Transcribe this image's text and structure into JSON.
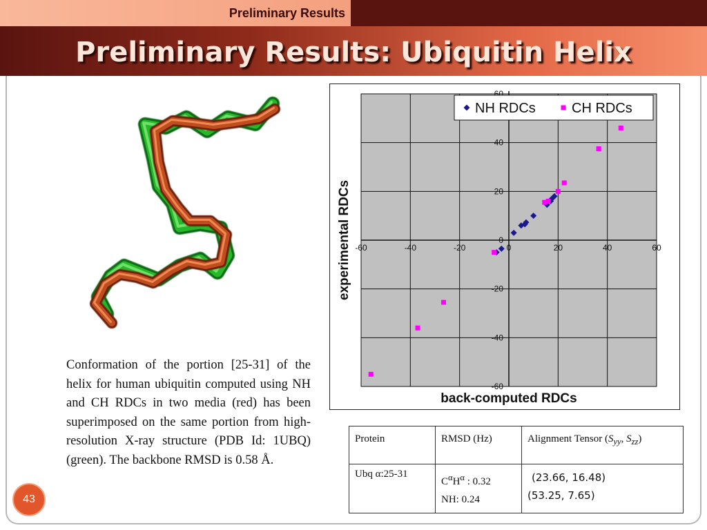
{
  "header": {
    "section_tab": "Preliminary Results",
    "title": "Preliminary Results: Ubiquitin Helix"
  },
  "caption": "Conformation of the portion [25-31] of the helix for human ubiquitin computed using NH and CH RDCs in two media (red) has been superimposed on the same portion from high-resolution X-ray structure (PDB Id: 1UBQ) (green). The backbone RMSD is 0.58 Å.",
  "page_number": "43",
  "colors": {
    "nh_series": "#1a1a8c",
    "ch_series": "#ff00ff",
    "plot_bg": "#c0c0c0",
    "model_red": "#b8471c",
    "xray_green": "#22b022"
  },
  "chart_data": {
    "type": "scatter",
    "xlabel": "back-computed RDCs",
    "ylabel": "experimental RDCs",
    "xlim": [
      -60,
      60
    ],
    "ylim": [
      -60,
      60
    ],
    "xticks": [
      -60,
      -40,
      -20,
      0,
      20,
      40,
      60
    ],
    "yticks": [
      -60,
      -40,
      -20,
      0,
      20,
      40,
      60
    ],
    "grid": true,
    "legend_position": "top-right",
    "series": [
      {
        "name": "NH RDCs",
        "marker": "diamond",
        "points": [
          [
            -3,
            -3.5
          ],
          [
            -5,
            -5
          ],
          [
            2,
            3
          ],
          [
            5,
            6
          ],
          [
            6.5,
            6.5
          ],
          [
            7,
            7.3
          ],
          [
            10,
            10
          ],
          [
            15.5,
            14.5
          ],
          [
            17,
            16
          ],
          [
            17.5,
            17
          ],
          [
            18.5,
            18
          ]
        ]
      },
      {
        "name": "CH RDCs",
        "marker": "square",
        "points": [
          [
            -56,
            -55
          ],
          [
            -37,
            -36
          ],
          [
            -26.5,
            -25.5
          ],
          [
            -6,
            -5
          ],
          [
            14.5,
            15.5
          ],
          [
            16,
            16
          ],
          [
            20,
            20
          ],
          [
            22.5,
            23.5
          ],
          [
            36.5,
            37.5
          ],
          [
            45.5,
            46
          ]
        ]
      }
    ]
  },
  "table": {
    "headers": {
      "protein": "Protein",
      "rmsd": "RMSD (Hz)",
      "tensor_prefix": "Alignment Tensor (",
      "tensor_s1": "S",
      "tensor_sub1": "yy",
      "tensor_sep": ", ",
      "tensor_s2": "S",
      "tensor_sub2": "zz",
      "tensor_suffix": ")"
    },
    "row": {
      "protein": "Ubq α:25-31",
      "rmsd_ca_base": "C",
      "rmsd_ca_sup1": "α",
      "rmsd_ca_h": "H",
      "rmsd_ca_sup2": "α",
      "rmsd_ca_value": " : 0.32",
      "rmsd_nh": "NH: 0.24",
      "tensor_1": "(23.66, 16.48)",
      "tensor_2": "(53.25, 7.65)"
    }
  }
}
